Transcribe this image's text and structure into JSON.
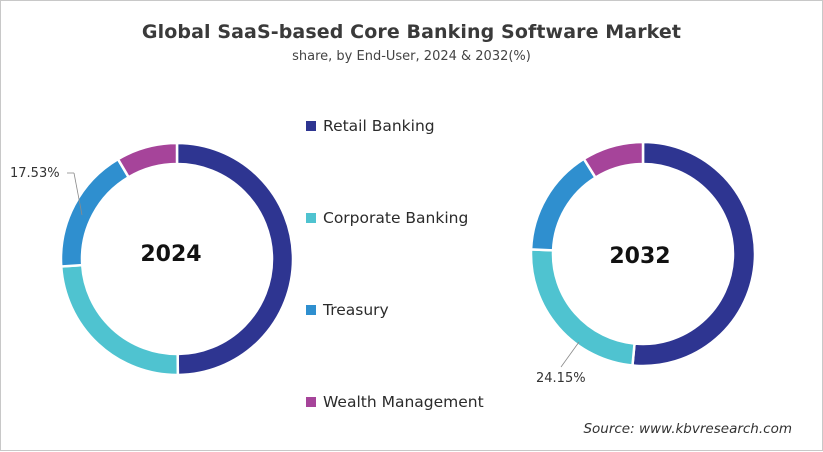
{
  "title": "Global SaaS-based Core Banking Software Market",
  "subtitle": "share, by End-User, 2024 & 2032(%)",
  "source": "Source: www.kbvresearch.com",
  "legend": [
    {
      "label": "Retail Banking",
      "color": "#2e3591"
    },
    {
      "label": "Corporate Banking",
      "color": "#4fc3d0"
    },
    {
      "label": "Treasury",
      "color": "#2f8fcf"
    },
    {
      "label": "Wealth Management",
      "color": "#a6449a"
    }
  ],
  "donuts": [
    {
      "year_label": "2024",
      "annotation": "17.53%"
    },
    {
      "year_label": "2032",
      "annotation": "24.15%"
    }
  ],
  "chart_data": {
    "type": "pie",
    "subtype": "donut",
    "title": "Global SaaS-based Core Banking Software Market",
    "subtitle": "share, by End-User, 2024 & 2032(%)",
    "categories": [
      "Retail Banking",
      "Corporate Banking",
      "Treasury",
      "Wealth Management"
    ],
    "colors": [
      "#2e3591",
      "#4fc3d0",
      "#2f8fcf",
      "#a6449a"
    ],
    "series": [
      {
        "name": "2024",
        "values": [
          49.9,
          24.1,
          17.53,
          8.5
        ],
        "labeled": {
          "Treasury": "17.53%"
        }
      },
      {
        "name": "2032",
        "values": [
          51.5,
          24.15,
          15.5,
          8.85
        ],
        "labeled": {
          "Corporate Banking": "24.15%"
        }
      }
    ],
    "legend_position": "center",
    "unit": "%",
    "source": "Source: www.kbvresearch.com"
  }
}
